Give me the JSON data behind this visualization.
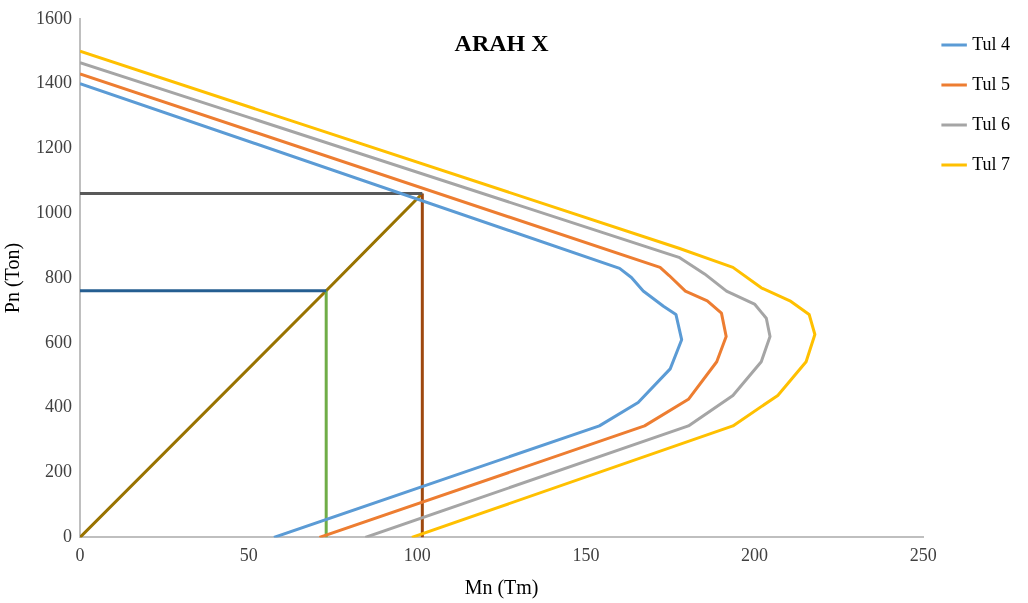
{
  "chart_data": {
    "type": "line",
    "title": "ARAH X",
    "xlabel": "Mn (Tm)",
    "ylabel": "Pn (Ton)",
    "xlim": [
      0,
      250
    ],
    "xticks": [
      0,
      50,
      100,
      150,
      200,
      250
    ],
    "ylim": [
      0,
      1600
    ],
    "yticks": [
      0,
      200,
      400,
      600,
      800,
      1000,
      1200,
      1400,
      1600
    ],
    "grid": false,
    "legend": "right",
    "marker": "none",
    "line_style": "solid",
    "series": [
      {
        "name": "Tul 4",
        "color": "#5b9bd5",
        "x": [
          0,
          160,
          163.5,
          167,
          173,
          176.7,
          178.4,
          175,
          165.5,
          154,
          57.5
        ],
        "values": [
          1400,
          830,
          802,
          760,
          713,
          688,
          610,
          520,
          416,
          344,
          0
        ]
      },
      {
        "name": "Tul 5",
        "color": "#ed7d31",
        "x": [
          0,
          172,
          174.7,
          179.5,
          186,
          190.2,
          191.6,
          188.8,
          180.4,
          167.4,
          71
        ],
        "values": [
          1430,
          833,
          808,
          760,
          730,
          692,
          620,
          542,
          426,
          344,
          0
        ]
      },
      {
        "name": "Tul 6",
        "color": "#a5a5a5",
        "x": [
          0,
          177.6,
          185.2,
          191.7,
          200,
          203.5,
          204.6,
          202,
          193.6,
          180.4,
          84.6
        ],
        "values": [
          1465,
          864,
          813,
          760,
          720,
          676,
          620,
          542,
          438,
          344,
          0
        ]
      },
      {
        "name": "Tul 7",
        "color": "#ffc000",
        "x": [
          0,
          177.6,
          193.6,
          202,
          210.5,
          216.2,
          217.9,
          215.3,
          206.9,
          193.6,
          98.4
        ],
        "values": [
          1500,
          892,
          833,
          770,
          730,
          688,
          626,
          542,
          438,
          344,
          0
        ]
      },
      {
        "color": "#595959",
        "x": [
          0,
          101.5
        ],
        "values": [
          1061,
          1061
        ]
      },
      {
        "color": "#255e91",
        "x": [
          0,
          73
        ],
        "values": [
          761,
          761
        ]
      },
      {
        "color": "#70ad47",
        "x": [
          73,
          73
        ],
        "values": [
          0,
          761
        ]
      },
      {
        "color": "#9e480e",
        "x": [
          101.5,
          101.5
        ],
        "values": [
          0,
          1061
        ]
      },
      {
        "color": "#997300",
        "x": [
          0,
          73,
          101.5
        ],
        "values": [
          0,
          761,
          1061
        ]
      }
    ]
  }
}
